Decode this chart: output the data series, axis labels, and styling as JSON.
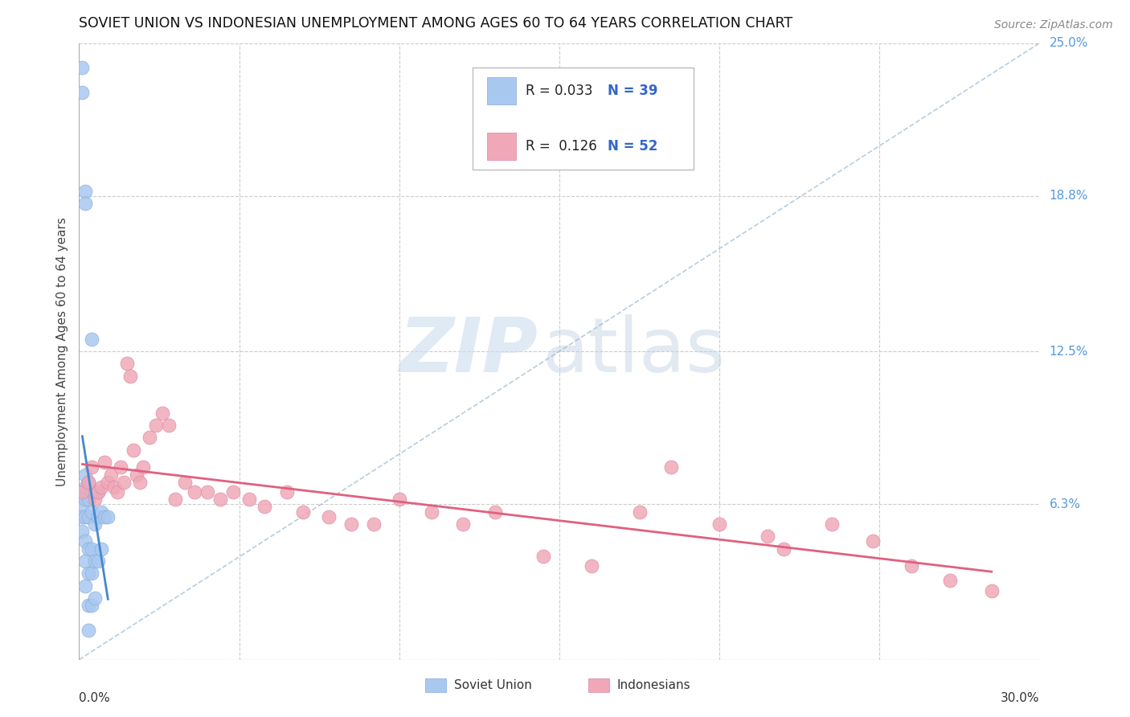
{
  "title": "SOVIET UNION VS INDONESIAN UNEMPLOYMENT AMONG AGES 60 TO 64 YEARS CORRELATION CHART",
  "source": "Source: ZipAtlas.com",
  "ylabel": "Unemployment Among Ages 60 to 64 years",
  "xlim": [
    0.0,
    0.3
  ],
  "ylim": [
    0.0,
    0.25
  ],
  "yticks": [
    0.0,
    0.063,
    0.125,
    0.188,
    0.25
  ],
  "ytick_labels": [
    "",
    "6.3%",
    "12.5%",
    "18.8%",
    "25.0%"
  ],
  "xticks": [
    0.0,
    0.05,
    0.1,
    0.15,
    0.2,
    0.25,
    0.3
  ],
  "soviet_R": "0.033",
  "soviet_N": "39",
  "indonesian_R": "0.126",
  "indonesian_N": "52",
  "soviet_color": "#a8c8f0",
  "soviet_edge_color": "#88aad8",
  "indonesian_color": "#f0a8b8",
  "indonesian_edge_color": "#d888a0",
  "soviet_line_color": "#4488cc",
  "indonesian_line_color": "#e06080",
  "trendline_dash_color": "#99b8d0",
  "legend_label_1": "Soviet Union",
  "legend_label_2": "Indonesians",
  "soviet_x": [
    0.001,
    0.001,
    0.001,
    0.001,
    0.001,
    0.001,
    0.002,
    0.002,
    0.002,
    0.002,
    0.002,
    0.002,
    0.002,
    0.002,
    0.002,
    0.003,
    0.003,
    0.003,
    0.003,
    0.003,
    0.003,
    0.003,
    0.004,
    0.004,
    0.004,
    0.004,
    0.004,
    0.004,
    0.005,
    0.005,
    0.005,
    0.005,
    0.006,
    0.006,
    0.006,
    0.007,
    0.007,
    0.008,
    0.009
  ],
  "soviet_y": [
    0.24,
    0.23,
    0.068,
    0.062,
    0.058,
    0.052,
    0.19,
    0.185,
    0.075,
    0.07,
    0.065,
    0.058,
    0.048,
    0.04,
    0.03,
    0.072,
    0.065,
    0.058,
    0.045,
    0.035,
    0.022,
    0.012,
    0.13,
    0.068,
    0.06,
    0.045,
    0.035,
    0.022,
    0.068,
    0.055,
    0.04,
    0.025,
    0.068,
    0.058,
    0.04,
    0.06,
    0.045,
    0.058,
    0.058
  ],
  "indonesian_x": [
    0.001,
    0.003,
    0.004,
    0.005,
    0.006,
    0.007,
    0.008,
    0.009,
    0.01,
    0.011,
    0.012,
    0.013,
    0.014,
    0.015,
    0.016,
    0.017,
    0.018,
    0.019,
    0.02,
    0.022,
    0.024,
    0.026,
    0.028,
    0.03,
    0.033,
    0.036,
    0.04,
    0.044,
    0.048,
    0.053,
    0.058,
    0.065,
    0.07,
    0.078,
    0.085,
    0.092,
    0.1,
    0.11,
    0.12,
    0.13,
    0.145,
    0.16,
    0.175,
    0.185,
    0.2,
    0.215,
    0.22,
    0.235,
    0.248,
    0.26,
    0.272,
    0.285
  ],
  "indonesian_y": [
    0.068,
    0.072,
    0.078,
    0.065,
    0.068,
    0.07,
    0.08,
    0.072,
    0.075,
    0.07,
    0.068,
    0.078,
    0.072,
    0.12,
    0.115,
    0.085,
    0.075,
    0.072,
    0.078,
    0.09,
    0.095,
    0.1,
    0.095,
    0.065,
    0.072,
    0.068,
    0.068,
    0.065,
    0.068,
    0.065,
    0.062,
    0.068,
    0.06,
    0.058,
    0.055,
    0.055,
    0.065,
    0.06,
    0.055,
    0.06,
    0.042,
    0.038,
    0.06,
    0.078,
    0.055,
    0.05,
    0.045,
    0.055,
    0.048,
    0.038,
    0.032,
    0.028
  ]
}
